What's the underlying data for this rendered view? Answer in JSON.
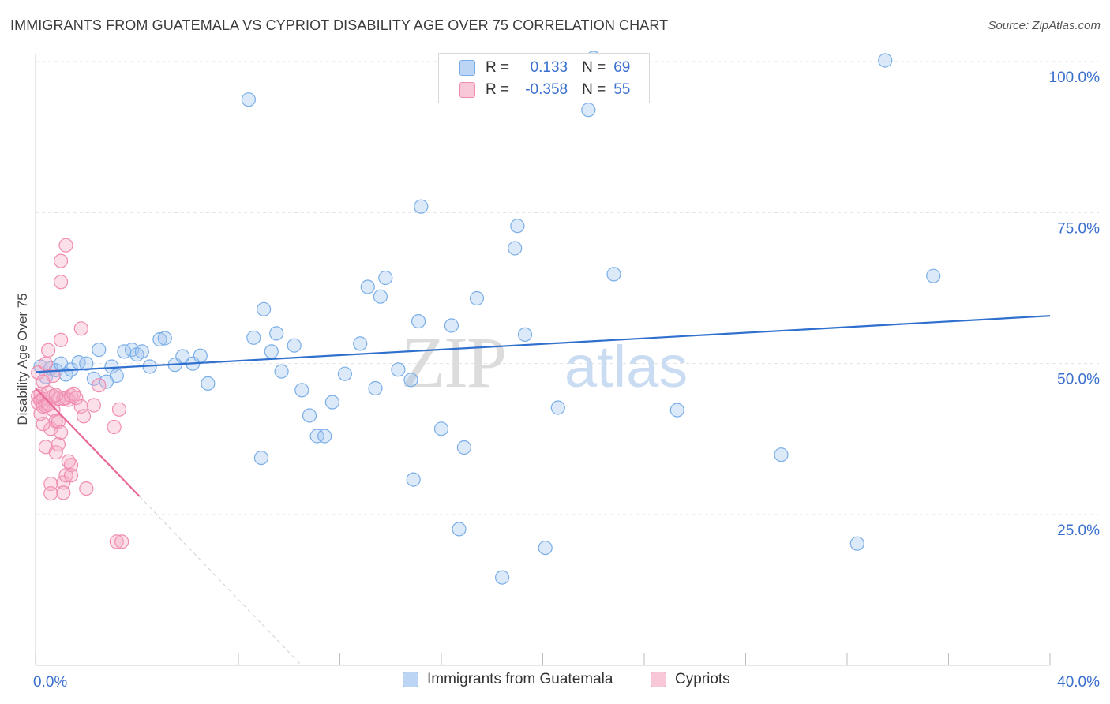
{
  "title": "IMMIGRANTS FROM GUATEMALA VS CYPRIOT DISABILITY AGE OVER 75 CORRELATION CHART",
  "source": "Source: ZipAtlas.com",
  "colors": {
    "blue": "#7aaee8",
    "blue_line": "#2f6fce",
    "pink": "#f08cb0",
    "pink_line": "#e8689a",
    "axis_text": "#3a6fce"
  },
  "legend": {
    "rows": [
      {
        "r_label": "R =",
        "r_value": "0.133",
        "n_label": "N =",
        "n_value": "69"
      },
      {
        "r_label": "R =",
        "r_value": "-0.358",
        "n_label": "N =",
        "n_value": "55"
      }
    ]
  },
  "bottom_legend": {
    "series1": "Immigrants from Guatemala",
    "series2": "Cypriots"
  },
  "watermark": {
    "part1": "ZIP",
    "part2": "atlas"
  },
  "chart_data": {
    "type": "scatter",
    "ylabel": "Disability Age Over 75",
    "xlabel": "",
    "xlim": [
      0,
      40
    ],
    "ylim": [
      0,
      103
    ],
    "x_tick_labels": [
      "0.0%",
      "40.0%"
    ],
    "y_ticks": [
      25,
      50,
      75,
      100
    ],
    "y_tick_labels": [
      "25.0%",
      "50.0%",
      "75.0%",
      "100.0%"
    ],
    "grid": true,
    "series": [
      {
        "name": "Immigrants from Guatemala",
        "r": 0.133,
        "n": 69,
        "trend": {
          "x": [
            0,
            40
          ],
          "y": [
            48.6,
            57.9
          ]
        },
        "points": [
          [
            0.2,
            49.5
          ],
          [
            0.4,
            47.8
          ],
          [
            0.6,
            49.2
          ],
          [
            0.8,
            48.9
          ],
          [
            1.0,
            50.0
          ],
          [
            1.2,
            48.2
          ],
          [
            1.4,
            49.0
          ],
          [
            1.7,
            50.2
          ],
          [
            2.0,
            50.0
          ],
          [
            2.3,
            47.5
          ],
          [
            2.5,
            52.3
          ],
          [
            2.8,
            47.0
          ],
          [
            3.0,
            49.5
          ],
          [
            3.2,
            48.0
          ],
          [
            3.5,
            52.0
          ],
          [
            3.8,
            52.3
          ],
          [
            4.0,
            51.5
          ],
          [
            4.2,
            52.0
          ],
          [
            4.5,
            49.5
          ],
          [
            4.9,
            54.0
          ],
          [
            5.1,
            54.2
          ],
          [
            5.5,
            49.8
          ],
          [
            5.8,
            51.2
          ],
          [
            6.2,
            50.0
          ],
          [
            6.8,
            46.7
          ],
          [
            8.4,
            93.7
          ],
          [
            8.6,
            54.3
          ],
          [
            8.9,
            34.4
          ],
          [
            9.3,
            52.0
          ],
          [
            9.5,
            55.0
          ],
          [
            9.7,
            48.7
          ],
          [
            10.2,
            53.0
          ],
          [
            10.5,
            45.6
          ],
          [
            10.8,
            41.4
          ],
          [
            11.1,
            38.0
          ],
          [
            11.4,
            38.0
          ],
          [
            11.7,
            43.6
          ],
          [
            12.2,
            48.3
          ],
          [
            12.8,
            53.3
          ],
          [
            13.1,
            62.7
          ],
          [
            13.4,
            45.9
          ],
          [
            13.6,
            61.1
          ],
          [
            13.8,
            64.2
          ],
          [
            14.3,
            49.0
          ],
          [
            14.8,
            47.3
          ],
          [
            14.9,
            30.8
          ],
          [
            15.1,
            57.0
          ],
          [
            15.2,
            76.0
          ],
          [
            16.0,
            39.2
          ],
          [
            16.4,
            56.3
          ],
          [
            16.7,
            22.6
          ],
          [
            16.9,
            36.1
          ],
          [
            17.4,
            60.8
          ],
          [
            18.4,
            14.6
          ],
          [
            18.9,
            69.1
          ],
          [
            19.0,
            72.8
          ],
          [
            19.3,
            54.8
          ],
          [
            20.1,
            19.5
          ],
          [
            20.6,
            42.7
          ],
          [
            21.8,
            92.0
          ],
          [
            22.8,
            64.8
          ],
          [
            25.3,
            42.3
          ],
          [
            29.4,
            34.9
          ],
          [
            32.4,
            20.2
          ],
          [
            33.5,
            100.2
          ],
          [
            35.4,
            64.5
          ],
          [
            22.0,
            100.6
          ],
          [
            6.5,
            51.3
          ],
          [
            9.0,
            59.0
          ]
        ]
      },
      {
        "name": "Cypriots",
        "r": -0.358,
        "n": 55,
        "trend": {
          "x": [
            0,
            4.1
          ],
          "y": [
            45.9,
            28.0
          ]
        },
        "trend_dashed": {
          "x": [
            4.1,
            10.5
          ],
          "y": [
            28.0,
            0
          ]
        },
        "points": [
          [
            0.1,
            48.5
          ],
          [
            0.1,
            44.6
          ],
          [
            0.1,
            43.5
          ],
          [
            0.2,
            45.0
          ],
          [
            0.2,
            41.7
          ],
          [
            0.2,
            43.9
          ],
          [
            0.3,
            47.0
          ],
          [
            0.3,
            44.1
          ],
          [
            0.3,
            42.9
          ],
          [
            0.4,
            50.0
          ],
          [
            0.4,
            43.0
          ],
          [
            0.4,
            36.2
          ],
          [
            0.5,
            52.2
          ],
          [
            0.5,
            45.2
          ],
          [
            0.5,
            43.2
          ],
          [
            0.6,
            39.2
          ],
          [
            0.6,
            30.1
          ],
          [
            0.6,
            28.5
          ],
          [
            0.7,
            44.6
          ],
          [
            0.7,
            42.3
          ],
          [
            0.8,
            40.5
          ],
          [
            0.8,
            35.3
          ],
          [
            0.9,
            44.2
          ],
          [
            0.9,
            40.4
          ],
          [
            0.9,
            36.6
          ],
          [
            1.0,
            67.0
          ],
          [
            1.0,
            63.5
          ],
          [
            1.0,
            53.9
          ],
          [
            1.0,
            38.6
          ],
          [
            1.1,
            44.2
          ],
          [
            1.1,
            30.3
          ],
          [
            1.1,
            28.6
          ],
          [
            1.2,
            69.6
          ],
          [
            1.2,
            44.3
          ],
          [
            1.2,
            31.5
          ],
          [
            1.3,
            44.0
          ],
          [
            1.3,
            33.8
          ],
          [
            1.4,
            44.7
          ],
          [
            1.4,
            33.2
          ],
          [
            1.4,
            31.5
          ],
          [
            1.5,
            45.0
          ],
          [
            1.6,
            44.3
          ],
          [
            1.8,
            55.8
          ],
          [
            1.8,
            42.9
          ],
          [
            1.9,
            41.3
          ],
          [
            2.0,
            29.3
          ],
          [
            2.3,
            43.1
          ],
          [
            2.5,
            46.4
          ],
          [
            3.1,
            39.5
          ],
          [
            3.2,
            20.5
          ],
          [
            3.3,
            42.4
          ],
          [
            3.4,
            20.5
          ],
          [
            0.7,
            48.0
          ],
          [
            0.8,
            44.8
          ],
          [
            0.3,
            40.0
          ]
        ]
      }
    ]
  }
}
